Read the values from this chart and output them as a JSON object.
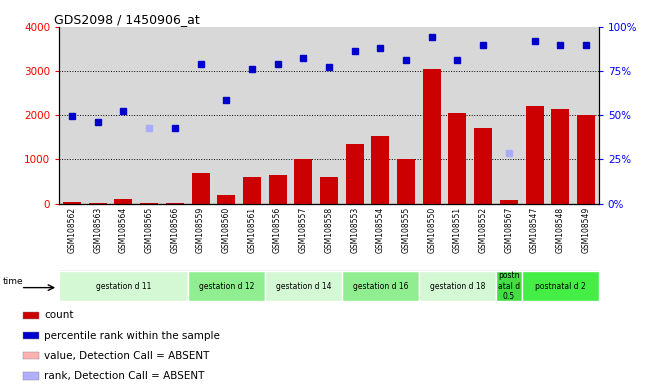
{
  "title": "GDS2098 / 1450906_at",
  "samples": [
    "GSM108562",
    "GSM108563",
    "GSM108564",
    "GSM108565",
    "GSM108566",
    "GSM108559",
    "GSM108560",
    "GSM108561",
    "GSM108556",
    "GSM108557",
    "GSM108558",
    "GSM108553",
    "GSM108554",
    "GSM108555",
    "GSM108550",
    "GSM108551",
    "GSM108552",
    "GSM108567",
    "GSM108547",
    "GSM108548",
    "GSM108549"
  ],
  "counts": [
    30,
    20,
    100,
    10,
    10,
    700,
    200,
    600,
    650,
    1000,
    600,
    1350,
    1520,
    1000,
    3050,
    2050,
    1700,
    70,
    2200,
    2150,
    2000
  ],
  "ranks_raw": [
    1980,
    1840,
    2100,
    null,
    1700,
    3150,
    2350,
    3050,
    3150,
    3300,
    3100,
    3450,
    3520,
    3250,
    3780,
    3250,
    3600,
    null,
    3680,
    3600,
    3600
  ],
  "absent_rank_idx": [
    3,
    17
  ],
  "absent_rank_vals": [
    1700,
    1150
  ],
  "groups": [
    {
      "label": "gestation d 11",
      "start": 0,
      "end": 4,
      "color": "#d4f7d4"
    },
    {
      "label": "gestation d 12",
      "start": 5,
      "end": 7,
      "color": "#90ee90"
    },
    {
      "label": "gestation d 14",
      "start": 8,
      "end": 10,
      "color": "#d4f7d4"
    },
    {
      "label": "gestation d 16",
      "start": 11,
      "end": 13,
      "color": "#90ee90"
    },
    {
      "label": "gestation d 18",
      "start": 14,
      "end": 16,
      "color": "#d4f7d4"
    },
    {
      "label": "postn\natal d\n0.5",
      "start": 17,
      "end": 17,
      "color": "#44dd44"
    },
    {
      "label": "postnatal d 2",
      "start": 18,
      "end": 20,
      "color": "#44ee44"
    }
  ],
  "ylim_left": [
    0,
    4000
  ],
  "ylim_right": [
    0,
    100
  ],
  "yticks_left": [
    0,
    1000,
    2000,
    3000,
    4000
  ],
  "yticks_right": [
    0,
    25,
    50,
    75,
    100
  ],
  "bar_color": "#cc0000",
  "rank_color": "#0000cc",
  "absent_rank_color": "#aaaaff",
  "plot_bg": "#d8d8d8",
  "legend_items": [
    {
      "color": "#cc0000",
      "label": "count"
    },
    {
      "color": "#0000cc",
      "label": "percentile rank within the sample"
    },
    {
      "color": "#ffb0b0",
      "label": "value, Detection Call = ABSENT"
    },
    {
      "color": "#b0b0ff",
      "label": "rank, Detection Call = ABSENT"
    }
  ]
}
